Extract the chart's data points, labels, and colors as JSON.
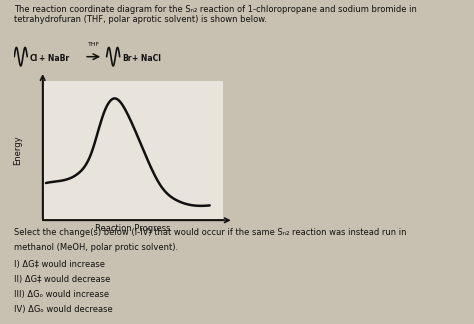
{
  "title_line1": "The reaction coordinate diagram for the Sₙ₂ reaction of 1-chloropropane and sodium bromide in",
  "title_line2": "tetrahydrofuran (THF, polar aprotic solvent) is shown below.",
  "xlabel": "Reaction Progress",
  "ylabel": "Energy",
  "select_text_line1": "Select the change(s) below (I-IV) that would occur if the same Sₙ₂ reaction was instead run in",
  "select_text_line2": "methanol (MeOH, polar protic solvent).",
  "option_I": "I) ΔG‡ would increase",
  "option_II": "II) ΔG‡ would decrease",
  "option_III": "III) ΔGₒ would increase",
  "option_IV": "IV) ΔGₒ would decrease",
  "bg_color": "#c8c0b0",
  "plot_bg": "#e8e4dc",
  "curve_color": "#111111",
  "text_color": "#111111",
  "rxn_left_wavy1": "~Cl",
  "rxn_right_wavy1": "~Br",
  "thf_label": "THF",
  "plus_left": "+ NaBr",
  "plus_right": "+ NaCl",
  "curve_x": [
    0.0,
    0.1,
    0.2,
    0.28,
    0.35,
    0.42,
    0.5,
    0.6,
    0.7,
    0.8,
    0.9,
    1.0
  ],
  "curve_y": [
    0.3,
    0.32,
    0.38,
    0.55,
    0.85,
    0.98,
    0.85,
    0.55,
    0.28,
    0.16,
    0.12,
    0.12
  ]
}
